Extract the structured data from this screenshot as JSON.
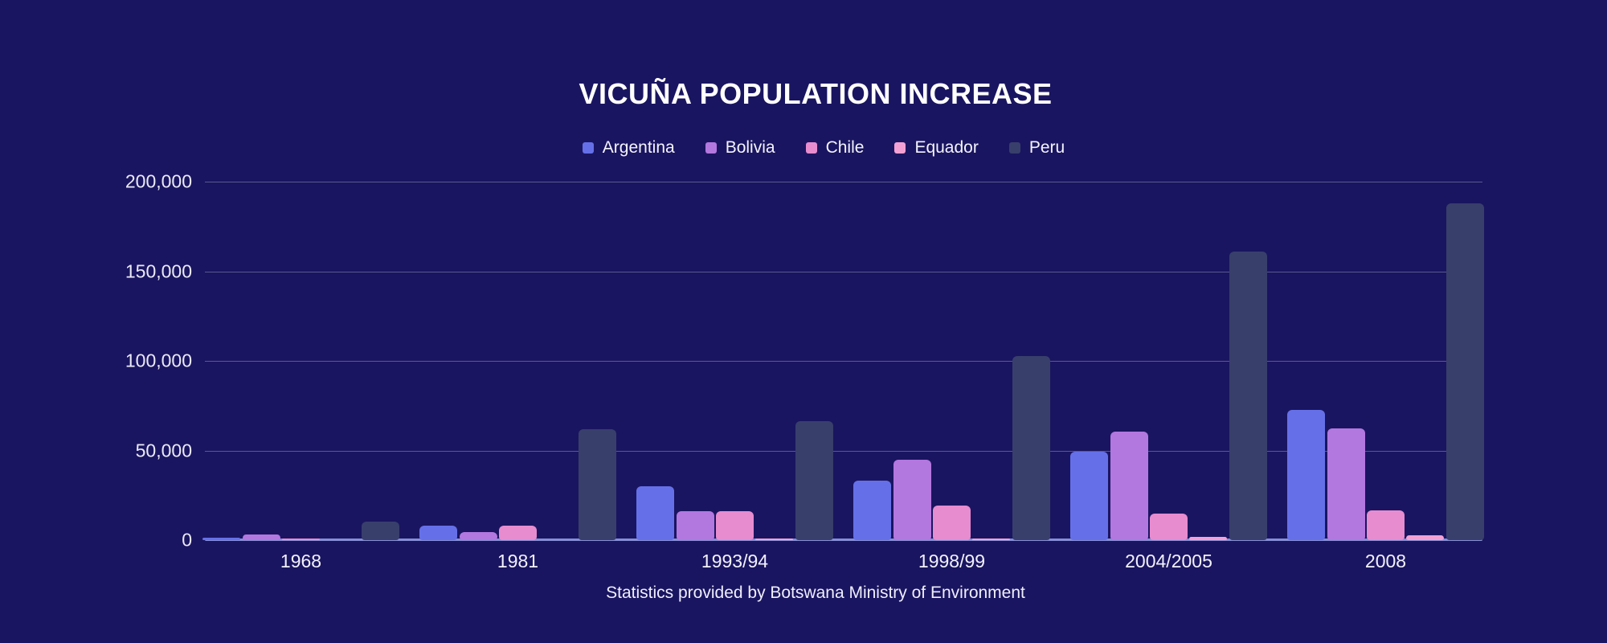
{
  "page": {
    "background_color": "#1A1560",
    "accent_text_color": "#FFFFFF"
  },
  "title": "VICUÑA POPULATION INCREASE",
  "footer": "Statistics provided by Botswana Ministry of Environment",
  "chart_data": {
    "type": "bar",
    "title": "VICUÑA POPULATION INCREASE",
    "xlabel": "",
    "ylabel": "",
    "categories": [
      "1968",
      "1981",
      "1993/94",
      "1998/99",
      "2004/2005",
      "2008"
    ],
    "series": [
      {
        "name": "Argentina",
        "color": "#6570E8",
        "values": [
          1200,
          8300,
          30000,
          33000,
          49500,
          72500
        ]
      },
      {
        "name": "Bolivia",
        "color": "#B377E0",
        "values": [
          3000,
          4300,
          16300,
          45000,
          60500,
          62500
        ]
      },
      {
        "name": "Chile",
        "color": "#E78CCF",
        "values": [
          900,
          8300,
          16300,
          19500,
          15000,
          16800
        ]
      },
      {
        "name": "Equador",
        "color": "#F3A1D4",
        "values": [
          0,
          0,
          1100,
          900,
          1600,
          2500
        ]
      },
      {
        "name": "Peru",
        "color": "#383F6B",
        "values": [
          10500,
          62000,
          66400,
          102700,
          160800,
          188100
        ]
      }
    ],
    "ylim": [
      0,
      200000
    ],
    "yticks": [
      0,
      50000,
      100000,
      150000,
      200000
    ],
    "ytick_labels": [
      "0",
      "50,000",
      "100,000",
      "150,000",
      "200,000"
    ],
    "grid": true,
    "legend_position": "top",
    "axis_line_color": "#868ED8",
    "gridline_color": "rgba(222,224,248,0.33)"
  }
}
